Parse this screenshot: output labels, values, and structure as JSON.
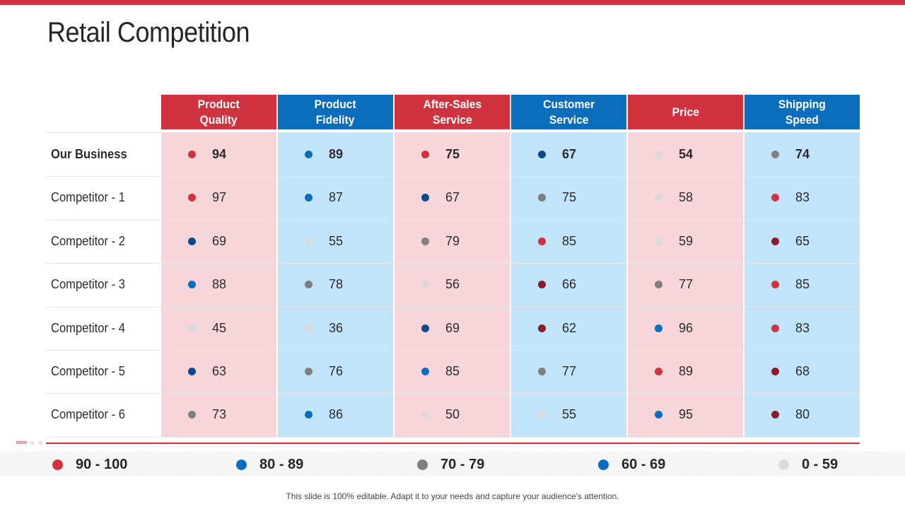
{
  "title": "Retail Competition",
  "columns": [
    {
      "label": "Product\nQuality",
      "header_color": "#d0323f",
      "bg": "#f6d6da"
    },
    {
      "label": "Product\nFidelity",
      "header_color": "#0a6ebd",
      "bg": "#c2e4fa"
    },
    {
      "label": "After-Sales\nService",
      "header_color": "#d0323f",
      "bg": "#f6d6da"
    },
    {
      "label": "Customer\nService",
      "header_color": "#0a6ebd",
      "bg": "#c2e4fa"
    },
    {
      "label": "Price",
      "header_color": "#d0323f",
      "bg": "#f6d6da"
    },
    {
      "label": "Shipping\nSpeed",
      "header_color": "#0a6ebd",
      "bg": "#c2e4fa"
    }
  ],
  "rows": [
    {
      "label": "Our Business",
      "bold": true,
      "values": [
        "94",
        "89",
        "75",
        "67",
        "54",
        "74"
      ],
      "dots": [
        "red",
        "blue",
        "red",
        "navy",
        "lightgray",
        "gray"
      ]
    },
    {
      "label": "Competitor - 1",
      "bold": false,
      "values": [
        "97",
        "87",
        "67",
        "75",
        "58",
        "83"
      ],
      "dots": [
        "red",
        "blue",
        "navy",
        "gray",
        "lightgray",
        "red"
      ]
    },
    {
      "label": "Competitor - 2",
      "bold": false,
      "values": [
        "69",
        "55",
        "79",
        "85",
        "59",
        "65"
      ],
      "dots": [
        "navy",
        "lightgray",
        "gray",
        "red",
        "lightgray",
        "darkred"
      ]
    },
    {
      "label": "Competitor - 3",
      "bold": false,
      "values": [
        "88",
        "78",
        "56",
        "66",
        "77",
        "85"
      ],
      "dots": [
        "blue",
        "gray",
        "lightgray",
        "darkred",
        "gray",
        "red"
      ]
    },
    {
      "label": "Competitor - 4",
      "bold": false,
      "values": [
        "45",
        "36",
        "69",
        "62",
        "96",
        "83"
      ],
      "dots": [
        "lightgray",
        "lightgray",
        "navy",
        "darkred",
        "blue",
        "red"
      ]
    },
    {
      "label": "Competitor - 5",
      "bold": false,
      "values": [
        "63",
        "76",
        "85",
        "77",
        "89",
        "68"
      ],
      "dots": [
        "navy",
        "gray",
        "blue",
        "gray",
        "red",
        "darkred"
      ]
    },
    {
      "label": "Competitor - 6",
      "bold": false,
      "values": [
        "73",
        "86",
        "50",
        "55",
        "95",
        "80"
      ],
      "dots": [
        "gray",
        "blue",
        "lightgray",
        "lightgray",
        "blue",
        "darkred"
      ]
    }
  ],
  "dot_colors": {
    "red": "#d0323f",
    "darkred": "#8b1a2b",
    "blue": "#0a6ebd",
    "navy": "#0d4a8a",
    "gray": "#7f7f7f",
    "lightgray": "#dadada"
  },
  "legend": [
    {
      "label": "90 - 100",
      "color": "#d0323f"
    },
    {
      "label": "80 - 89",
      "color": "#0a6ebd"
    },
    {
      "label": "70 - 79",
      "color": "#7f7f7f"
    },
    {
      "label": "60 - 69",
      "color": "#0a6ebd"
    },
    {
      "label": "0 - 59",
      "color": "#dadada"
    }
  ],
  "footer": "This slide is 100% editable. Adapt it to your needs and capture your audience's attention.",
  "decor": {
    "arrows": "»»»",
    "circles": "○ ○"
  }
}
